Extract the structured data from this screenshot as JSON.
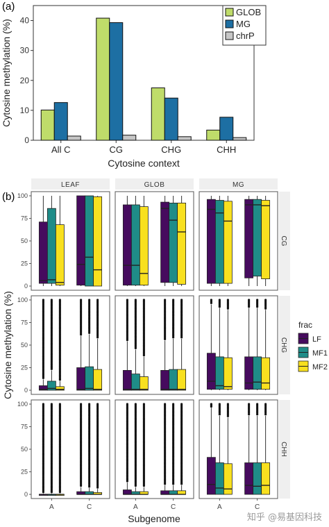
{
  "panel_labels": {
    "a": "(a)",
    "b": "(b)"
  },
  "colors": {
    "GLOB": "#bfdc6a",
    "MG": "#1d6fa3",
    "chrP": "#c6c6c6",
    "LF": "#460b5e",
    "MF1": "#1f8c88",
    "MF2": "#f8e01f",
    "strip": "#efefef",
    "panel_border": "#555555",
    "median": "#222222"
  },
  "watermark": "知乎 @易基因科技",
  "chart_data": [
    {
      "type": "bar",
      "panel": "(a)",
      "categories": [
        "All C",
        "CG",
        "CHG",
        "CHH"
      ],
      "series": [
        {
          "name": "GLOB",
          "values": [
            10.1,
            40.8,
            17.5,
            3.4
          ]
        },
        {
          "name": "MG",
          "values": [
            12.6,
            39.3,
            14.1,
            7.7
          ]
        },
        {
          "name": "chrP",
          "values": [
            1.4,
            1.7,
            1.2,
            0.9
          ]
        }
      ],
      "xlabel": "Cytosine context",
      "ylabel": "Cytosine methylation (%)",
      "ylim": [
        0,
        45
      ],
      "yticks": [
        0,
        10,
        20,
        30,
        40
      ],
      "legend": "top-right",
      "grid": false
    },
    {
      "type": "box",
      "panel": "(b)",
      "xlabel": "Subgenome",
      "ylabel": "Cytosine methylation (%)",
      "ylim": [
        0,
        100
      ],
      "yticks": [
        0,
        25,
        50,
        75,
        100
      ],
      "columns": [
        "LEAF",
        "GLOB",
        "MG"
      ],
      "rows": [
        "CG",
        "CHG",
        "CHH"
      ],
      "x_categories": [
        "A",
        "C"
      ],
      "legend": {
        "title": "frac",
        "entries": [
          "LF",
          "MF1",
          "MF2"
        ],
        "placement": "right"
      },
      "boxes": [
        {
          "col": "LEAF",
          "row": "CG",
          "sub": "A",
          "LF": [
            0,
            3,
            6,
            71,
            100
          ],
          "MF1": [
            0,
            3,
            7,
            86,
            100
          ],
          "MF2": [
            0,
            1,
            4,
            68,
            100
          ]
        },
        {
          "col": "LEAF",
          "row": "CG",
          "sub": "C",
          "LF": [
            0,
            1,
            24,
            100,
            100
          ],
          "MF1": [
            0,
            0,
            32,
            100,
            100
          ],
          "MF2": [
            0,
            0,
            18,
            99,
            100
          ]
        },
        {
          "col": "GLOB",
          "row": "CG",
          "sub": "A",
          "LF": [
            0,
            1,
            23,
            90,
            100
          ],
          "MF1": [
            0,
            1,
            23,
            90,
            100
          ],
          "MF2": [
            0,
            1,
            14,
            88,
            100
          ]
        },
        {
          "col": "GLOB",
          "row": "CG",
          "sub": "C",
          "LF": [
            0,
            4,
            86,
            93,
            100
          ],
          "MF1": [
            0,
            4,
            73,
            92,
            100
          ],
          "MF2": [
            0,
            2,
            60,
            92,
            100
          ]
        },
        {
          "col": "MG",
          "row": "CG",
          "sub": "A",
          "LF": [
            0,
            3,
            85,
            96,
            100
          ],
          "MF1": [
            0,
            3,
            81,
            95,
            100
          ],
          "MF2": [
            0,
            3,
            72,
            94,
            100
          ]
        },
        {
          "col": "MG",
          "row": "CG",
          "sub": "C",
          "LF": [
            0,
            9,
            90,
            96,
            100
          ],
          "MF1": [
            0,
            11,
            90,
            96,
            100
          ],
          "MF2": [
            0,
            8,
            89,
            95,
            100
          ]
        },
        {
          "col": "LEAF",
          "row": "CHG",
          "sub": "A",
          "LF": [
            0,
            0,
            1,
            5,
            12
          ],
          "MF1": [
            0,
            0,
            2,
            10,
            22
          ],
          "MF2": [
            0,
            0,
            1,
            4,
            10
          ]
        },
        {
          "col": "LEAF",
          "row": "CHG",
          "sub": "C",
          "LF": [
            0,
            0,
            1,
            25,
            60
          ],
          "MF1": [
            0,
            0,
            2,
            26,
            62
          ],
          "MF2": [
            0,
            0,
            1,
            23,
            57
          ]
        },
        {
          "col": "GLOB",
          "row": "CHG",
          "sub": "A",
          "LF": [
            0,
            0,
            1,
            22,
            54
          ],
          "MF1": [
            0,
            0,
            1,
            18,
            45
          ],
          "MF2": [
            0,
            0,
            1,
            15,
            37
          ]
        },
        {
          "col": "GLOB",
          "row": "CHG",
          "sub": "C",
          "LF": [
            0,
            0,
            1,
            22,
            55
          ],
          "MF1": [
            0,
            0,
            1,
            23,
            57
          ],
          "MF2": [
            0,
            0,
            1,
            23,
            57
          ]
        },
        {
          "col": "MG",
          "row": "CHG",
          "sub": "A",
          "LF": [
            0,
            1,
            10,
            41,
            95
          ],
          "MF1": [
            0,
            1,
            5,
            37,
            91
          ],
          "MF2": [
            0,
            1,
            4,
            36,
            89
          ]
        },
        {
          "col": "MG",
          "row": "CHG",
          "sub": "C",
          "LF": [
            0,
            1,
            8,
            37,
            91
          ],
          "MF1": [
            0,
            1,
            9,
            37,
            91
          ],
          "MF2": [
            0,
            1,
            8,
            36,
            89
          ]
        },
        {
          "col": "LEAF",
          "row": "CHH",
          "sub": "A",
          "LF": [
            0,
            0,
            0,
            0,
            1
          ],
          "MF1": [
            0,
            0,
            0,
            0,
            1
          ],
          "MF2": [
            0,
            0,
            0,
            0,
            1
          ]
        },
        {
          "col": "LEAF",
          "row": "CHH",
          "sub": "C",
          "LF": [
            0,
            0,
            0,
            3,
            8
          ],
          "MF1": [
            0,
            0,
            0,
            3,
            7
          ],
          "MF2": [
            0,
            0,
            0,
            2,
            6
          ]
        },
        {
          "col": "GLOB",
          "row": "CHH",
          "sub": "A",
          "LF": [
            0,
            0,
            0,
            5,
            13
          ],
          "MF1": [
            0,
            0,
            0,
            3,
            8
          ],
          "MF2": [
            0,
            0,
            0,
            3,
            8
          ]
        },
        {
          "col": "GLOB",
          "row": "CHH",
          "sub": "C",
          "LF": [
            0,
            0,
            0,
            4,
            10
          ],
          "MF1": [
            0,
            0,
            0,
            4,
            10
          ],
          "MF2": [
            0,
            0,
            0,
            4,
            10
          ]
        },
        {
          "col": "MG",
          "row": "CHH",
          "sub": "A",
          "LF": [
            0,
            0,
            11,
            41,
            96
          ],
          "MF1": [
            0,
            0,
            7,
            35,
            87
          ],
          "MF2": [
            0,
            0,
            6,
            34,
            85
          ]
        },
        {
          "col": "MG",
          "row": "CHH",
          "sub": "C",
          "LF": [
            0,
            0,
            10,
            35,
            87
          ],
          "MF1": [
            0,
            0,
            9,
            35,
            87
          ],
          "MF2": [
            0,
            0,
            10,
            35,
            87
          ]
        }
      ]
    }
  ]
}
